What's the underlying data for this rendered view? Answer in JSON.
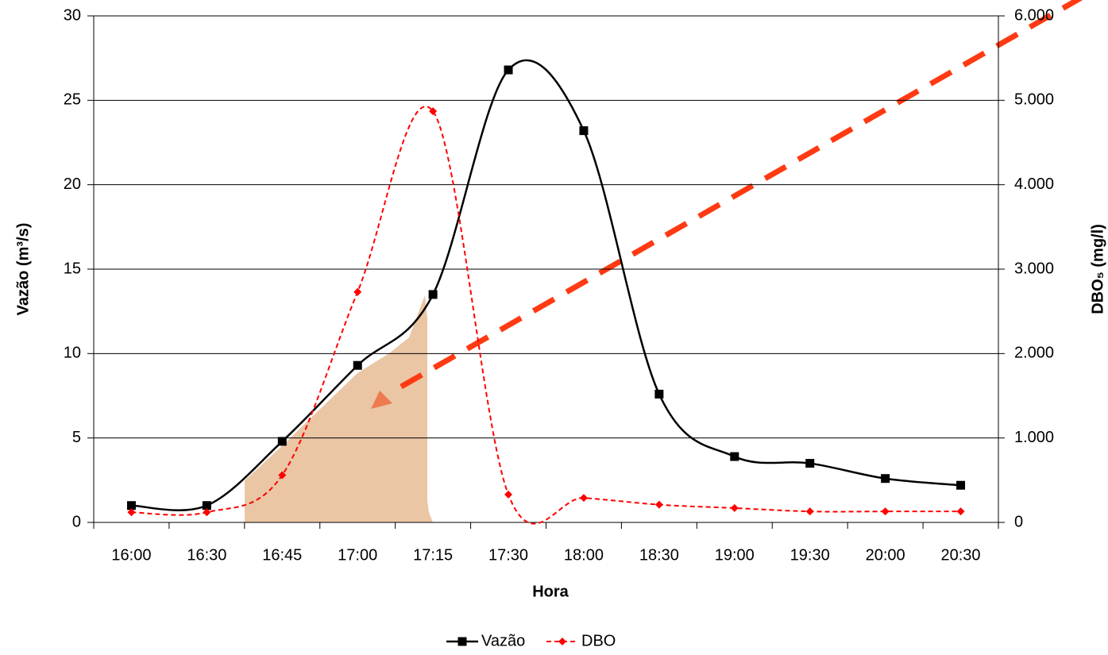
{
  "chart_data": {
    "type": "line",
    "x_label": "Hora",
    "y_label": "Vazão (m³/s)",
    "y2_label": "DBO₅ (mg/l)",
    "categories": [
      "16:00",
      "16:30",
      "16:45",
      "17:00",
      "17:15",
      "17:30",
      "18:00",
      "18:30",
      "19:00",
      "19:30",
      "20:00",
      "20:30"
    ],
    "series": [
      {
        "name": "Vazão",
        "color": "#000000",
        "values": [
          1.0,
          1.0,
          4.8,
          9.3,
          13.5,
          26.8,
          23.2,
          7.6,
          3.9,
          3.5,
          2.6,
          2.2
        ]
      },
      {
        "name": "DBO",
        "color": "#ff0000",
        "axis": "y2",
        "values": [
          120,
          120,
          560,
          2730,
          4870,
          330,
          290,
          210,
          170,
          130,
          130,
          130
        ]
      }
    ],
    "ylim": [
      0,
      30
    ],
    "yticks": [
      0,
      5,
      10,
      15,
      20,
      25,
      30
    ],
    "y2lim": [
      0,
      6000
    ],
    "y2ticks": [
      0,
      {
        "value": 1000,
        "label": "1.000"
      },
      {
        "value": 2000,
        "label": "2.000"
      },
      {
        "value": 3000,
        "label": "3.000"
      },
      {
        "value": 4000,
        "label": "4.000"
      },
      {
        "value": 5000,
        "label": "5.000"
      },
      {
        "value": 6000,
        "label": "6.000"
      }
    ],
    "grid": true,
    "legend": "bottom"
  }
}
